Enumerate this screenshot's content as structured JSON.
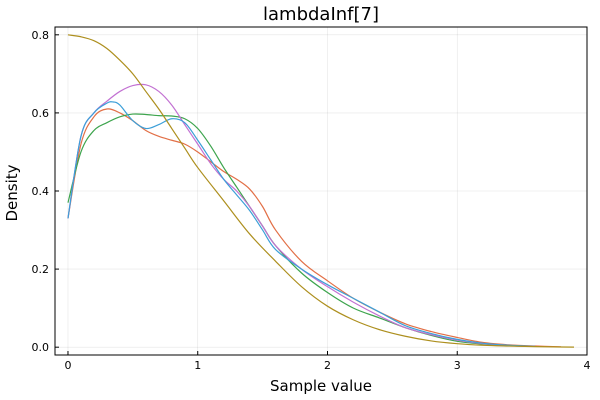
{
  "chart_data": {
    "type": "line",
    "title": "lambdaInf[7]",
    "xlabel": "Sample value",
    "ylabel": "Density",
    "xlim": [
      -0.1,
      4.0
    ],
    "ylim": [
      -0.02,
      0.82
    ],
    "xticks": [
      0,
      1,
      2,
      3,
      4
    ],
    "yticks": [
      0.0,
      0.2,
      0.4,
      0.6,
      0.8
    ],
    "xtick_labels": [
      "0",
      "1",
      "2",
      "3",
      "4"
    ],
    "ytick_labels": [
      "0.0",
      "0.2",
      "0.4",
      "0.6",
      "0.8"
    ],
    "grid": true,
    "legend": "none",
    "series": [
      {
        "color": "#e26f46",
        "x": [
          0.0,
          0.1,
          0.2,
          0.3,
          0.4,
          0.5,
          0.6,
          0.7,
          0.8,
          0.9,
          1.0,
          1.1,
          1.2,
          1.3,
          1.4,
          1.5,
          1.6,
          1.8,
          2.0,
          2.2,
          2.4,
          2.6,
          2.8,
          3.0,
          3.2,
          3.4,
          3.6,
          3.8
        ],
        "y": [
          0.33,
          0.52,
          0.59,
          0.61,
          0.6,
          0.58,
          0.555,
          0.54,
          0.53,
          0.52,
          0.5,
          0.475,
          0.45,
          0.43,
          0.405,
          0.36,
          0.3,
          0.22,
          0.17,
          0.125,
          0.09,
          0.06,
          0.04,
          0.025,
          0.012,
          0.006,
          0.003,
          0.001
        ]
      },
      {
        "color": "#3da44d",
        "x": [
          0.0,
          0.1,
          0.2,
          0.3,
          0.4,
          0.5,
          0.6,
          0.7,
          0.8,
          0.9,
          1.0,
          1.1,
          1.2,
          1.3,
          1.4,
          1.5,
          1.6,
          1.8,
          2.0,
          2.2,
          2.4,
          2.6,
          2.8,
          3.0,
          3.2,
          3.4,
          3.6
        ],
        "y": [
          0.37,
          0.5,
          0.555,
          0.575,
          0.59,
          0.597,
          0.596,
          0.593,
          0.592,
          0.585,
          0.56,
          0.515,
          0.46,
          0.41,
          0.36,
          0.31,
          0.26,
          0.19,
          0.14,
          0.1,
          0.075,
          0.05,
          0.03,
          0.015,
          0.008,
          0.004,
          0.002
        ]
      },
      {
        "color": "#c271d2",
        "x": [
          0.0,
          0.1,
          0.2,
          0.3,
          0.4,
          0.5,
          0.6,
          0.7,
          0.8,
          0.9,
          1.0,
          1.1,
          1.2,
          1.3,
          1.4,
          1.5,
          1.6,
          1.8,
          2.0,
          2.2,
          2.4,
          2.6,
          2.8,
          3.0,
          3.2,
          3.4,
          3.6
        ],
        "y": [
          0.33,
          0.54,
          0.6,
          0.63,
          0.655,
          0.67,
          0.672,
          0.655,
          0.62,
          0.57,
          0.52,
          0.47,
          0.43,
          0.4,
          0.36,
          0.31,
          0.26,
          0.2,
          0.155,
          0.115,
          0.08,
          0.05,
          0.032,
          0.018,
          0.009,
          0.004,
          0.002
        ]
      },
      {
        "color": "#3c9fd8",
        "x": [
          0.0,
          0.1,
          0.2,
          0.3,
          0.35,
          0.4,
          0.5,
          0.6,
          0.7,
          0.8,
          0.9,
          1.0,
          1.1,
          1.2,
          1.3,
          1.4,
          1.5,
          1.6,
          1.8,
          2.0,
          2.2,
          2.4,
          2.6,
          2.8,
          3.0,
          3.2,
          3.4,
          3.6
        ],
        "y": [
          0.33,
          0.54,
          0.6,
          0.625,
          0.628,
          0.62,
          0.58,
          0.56,
          0.57,
          0.585,
          0.575,
          0.53,
          0.48,
          0.43,
          0.39,
          0.35,
          0.3,
          0.25,
          0.2,
          0.16,
          0.125,
          0.09,
          0.055,
          0.035,
          0.02,
          0.01,
          0.005,
          0.002
        ]
      },
      {
        "color": "#ad8f1e",
        "x": [
          0.0,
          0.1,
          0.2,
          0.3,
          0.4,
          0.5,
          0.6,
          0.7,
          0.8,
          0.9,
          1.0,
          1.2,
          1.4,
          1.6,
          1.8,
          2.0,
          2.2,
          2.4,
          2.6,
          2.8,
          3.0,
          3.2,
          3.4,
          3.6,
          3.8,
          3.9
        ],
        "y": [
          0.8,
          0.795,
          0.785,
          0.765,
          0.735,
          0.7,
          0.655,
          0.61,
          0.56,
          0.51,
          0.46,
          0.375,
          0.29,
          0.22,
          0.155,
          0.105,
          0.07,
          0.045,
          0.028,
          0.016,
          0.009,
          0.005,
          0.003,
          0.0015,
          0.0005,
          0.0002
        ]
      }
    ]
  }
}
